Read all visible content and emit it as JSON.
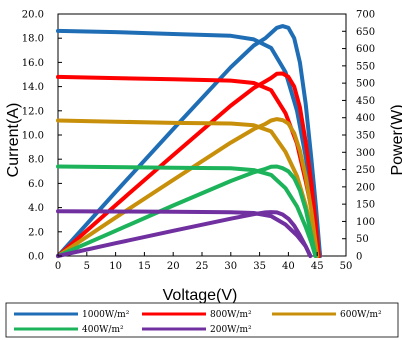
{
  "chart_data": {
    "type": "line",
    "xlabel": "Voltage(V)",
    "ylabel_left": "Current(A)",
    "ylabel_right": "Power(W)",
    "xlim": [
      0,
      50
    ],
    "ylim_left": [
      0,
      20
    ],
    "ylim_right": [
      0,
      700
    ],
    "xticks": [
      "0",
      "5",
      "10",
      "15",
      "20",
      "25",
      "30",
      "35",
      "40",
      "45",
      "50"
    ],
    "yticks_left": [
      "0.0",
      "2.0",
      "4.0",
      "6.0",
      "8.0",
      "10.0",
      "12.0",
      "14.0",
      "16.0",
      "18.0",
      "20.0"
    ],
    "yticks_right": [
      "0",
      "50",
      "100",
      "150",
      "200",
      "250",
      "300",
      "350",
      "400",
      "450",
      "500",
      "550",
      "600",
      "650",
      "700"
    ],
    "grid": false,
    "legend_position": "bottom",
    "series": [
      {
        "name": "1000W/m²",
        "color": "#1f6eb5",
        "iv": [
          [
            0,
            18.6
          ],
          [
            10,
            18.5
          ],
          [
            20,
            18.35
          ],
          [
            30,
            18.2
          ],
          [
            34,
            17.9
          ],
          [
            37,
            17.2
          ],
          [
            39.5,
            15.2
          ],
          [
            41.5,
            12.0
          ],
          [
            43,
            8.2
          ],
          [
            44.5,
            3.8
          ],
          [
            45.5,
            0
          ]
        ],
        "pv": [
          [
            0,
            0
          ],
          [
            10,
            185
          ],
          [
            20,
            367
          ],
          [
            30,
            546
          ],
          [
            34,
            609
          ],
          [
            36,
            630
          ],
          [
            37,
            645
          ],
          [
            38,
            660
          ],
          [
            39,
            665
          ],
          [
            40,
            660
          ],
          [
            41,
            630
          ],
          [
            42,
            560
          ],
          [
            43,
            440
          ],
          [
            44,
            280
          ],
          [
            44.8,
            140
          ],
          [
            45.5,
            0
          ]
        ]
      },
      {
        "name": "800W/m²",
        "color": "#ff0000",
        "iv": [
          [
            0,
            14.8
          ],
          [
            10,
            14.7
          ],
          [
            20,
            14.6
          ],
          [
            30,
            14.5
          ],
          [
            34,
            14.3
          ],
          [
            37,
            13.7
          ],
          [
            39.5,
            11.8
          ],
          [
            41.5,
            9.3
          ],
          [
            43,
            6.2
          ],
          [
            44.5,
            2.8
          ],
          [
            45.3,
            0
          ]
        ],
        "pv": [
          [
            0,
            0
          ],
          [
            10,
            147
          ],
          [
            20,
            292
          ],
          [
            30,
            435
          ],
          [
            34,
            486
          ],
          [
            36,
            505
          ],
          [
            37,
            515
          ],
          [
            38,
            527
          ],
          [
            39,
            528
          ],
          [
            40,
            518
          ],
          [
            41,
            490
          ],
          [
            42,
            430
          ],
          [
            43,
            330
          ],
          [
            44,
            210
          ],
          [
            44.7,
            100
          ],
          [
            45.3,
            0
          ]
        ]
      },
      {
        "name": "600W/m²",
        "color": "#c8900a",
        "iv": [
          [
            0,
            11.2
          ],
          [
            10,
            11.1
          ],
          [
            20,
            11.0
          ],
          [
            30,
            10.95
          ],
          [
            34,
            10.8
          ],
          [
            37,
            10.3
          ],
          [
            39.5,
            8.6
          ],
          [
            41.5,
            6.6
          ],
          [
            43,
            4.2
          ],
          [
            44.2,
            1.8
          ],
          [
            45,
            0
          ]
        ],
        "pv": [
          [
            0,
            0
          ],
          [
            10,
            111
          ],
          [
            20,
            220
          ],
          [
            30,
            328
          ],
          [
            34,
            367
          ],
          [
            36,
            382
          ],
          [
            37,
            392
          ],
          [
            38,
            396
          ],
          [
            39,
            393
          ],
          [
            40,
            383
          ],
          [
            41,
            355
          ],
          [
            42,
            305
          ],
          [
            43,
            230
          ],
          [
            44,
            130
          ],
          [
            45,
            0
          ]
        ]
      },
      {
        "name": "400W/m²",
        "color": "#1db35a",
        "iv": [
          [
            0,
            7.4
          ],
          [
            10,
            7.35
          ],
          [
            20,
            7.3
          ],
          [
            30,
            7.25
          ],
          [
            34,
            7.1
          ],
          [
            37,
            6.7
          ],
          [
            39.5,
            5.6
          ],
          [
            41.5,
            4.1
          ],
          [
            43,
            2.4
          ],
          [
            44,
            1.1
          ],
          [
            44.7,
            0
          ]
        ],
        "pv": [
          [
            0,
            0
          ],
          [
            10,
            73
          ],
          [
            20,
            146
          ],
          [
            30,
            217
          ],
          [
            34,
            242
          ],
          [
            36,
            252
          ],
          [
            37,
            258
          ],
          [
            38,
            259
          ],
          [
            39,
            254
          ],
          [
            40,
            245
          ],
          [
            41,
            225
          ],
          [
            42,
            190
          ],
          [
            43,
            135
          ],
          [
            44,
            60
          ],
          [
            44.7,
            0
          ]
        ]
      },
      {
        "name": "200W/m²",
        "color": "#7030a0",
        "iv": [
          [
            0,
            3.7
          ],
          [
            10,
            3.68
          ],
          [
            20,
            3.65
          ],
          [
            30,
            3.62
          ],
          [
            34,
            3.55
          ],
          [
            37,
            3.3
          ],
          [
            39.5,
            2.6
          ],
          [
            41.5,
            1.7
          ],
          [
            43,
            0.8
          ],
          [
            43.8,
            0
          ]
        ],
        "pv": [
          [
            0,
            0
          ],
          [
            10,
            37
          ],
          [
            20,
            73
          ],
          [
            30,
            108
          ],
          [
            34,
            121
          ],
          [
            36,
            126
          ],
          [
            37,
            127
          ],
          [
            38,
            126
          ],
          [
            39,
            120
          ],
          [
            40,
            108
          ],
          [
            41,
            88
          ],
          [
            42,
            60
          ],
          [
            43,
            28
          ],
          [
            43.8,
            0
          ]
        ]
      }
    ]
  }
}
